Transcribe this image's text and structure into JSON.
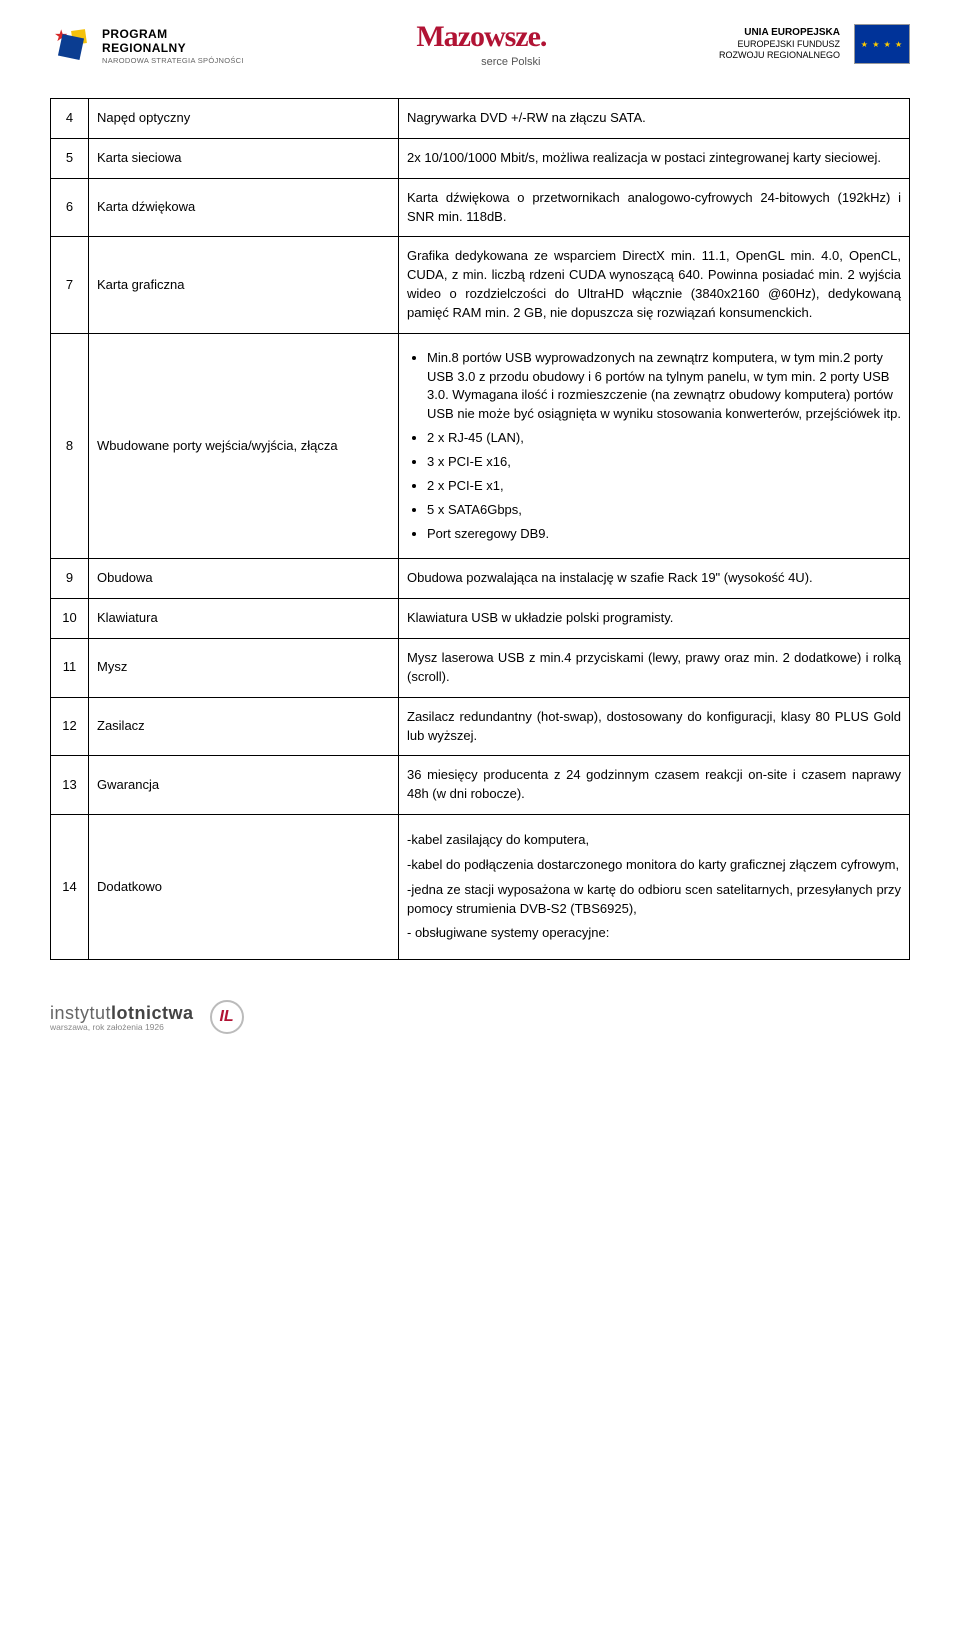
{
  "header": {
    "left": {
      "line1": "PROGRAM",
      "line2": "REGIONALNY",
      "line3": "NARODOWA STRATEGIA SPÓJNOŚCI"
    },
    "center": {
      "word": "Mazowsze.",
      "sub": "serce Polski"
    },
    "right": {
      "line1": "UNIA EUROPEJSKA",
      "line2": "EUROPEJSKI FUNDUSZ",
      "line3": "ROZWOJU REGIONALNEGO",
      "stars": "★ ★ ★ ★"
    }
  },
  "rows": [
    {
      "num": "4",
      "name": "Napęd optyczny",
      "desc": "Nagrywarka DVD +/-RW na złączu SATA.",
      "justify": false
    },
    {
      "num": "5",
      "name": "Karta sieciowa",
      "desc": "2x 10/100/1000 Mbit/s, możliwa realizacja w postaci zintegrowanej karty sieciowej.",
      "justify": false
    },
    {
      "num": "6",
      "name": "Karta dźwiękowa",
      "desc": "Karta dźwiękowa o przetwornikach analogowo-cyfrowych 24-bitowych (192kHz) i SNR min. 118dB.",
      "justify": false
    },
    {
      "num": "7",
      "name": "Karta graficzna",
      "desc": "Grafika dedykowana ze wsparciem DirectX min. 11.1, OpenGL min. 4.0, OpenCL, CUDA, z min. liczbą rdzeni CUDA wynoszącą 640. Powinna posiadać min. 2 wyjścia wideo o rozdzielczości do UltraHD włącznie (3840x2160 @60Hz), dedykowaną pamięć RAM min. 2 GB, nie dopuszcza się rozwiązań konsumenckich.",
      "justify": true
    }
  ],
  "row8": {
    "num": "8",
    "name": "Wbudowane porty wejścia/wyjścia, złącza",
    "bullets": [
      "Min.8 portów USB wyprowadzonych na zewnątrz komputera, w tym min.2 porty USB 3.0 z przodu obudowy i 6 portów na tylnym panelu, w tym min. 2 porty USB 3.0. Wymagana ilość i rozmieszczenie (na zewnątrz obudowy komputera) portów USB nie może być osiągnięta w wyniku stosowania konwerterów, przejściówek itp.",
      "2 x RJ-45 (LAN),",
      "3 x PCI-E x16,",
      "2 x PCI-E x1,",
      "5 x SATA6Gbps,",
      "Port szeregowy DB9."
    ]
  },
  "rowsB": [
    {
      "num": "9",
      "name": "Obudowa",
      "desc": "Obudowa pozwalająca na instalację w szafie Rack 19\" (wysokość 4U).",
      "justify": false
    },
    {
      "num": "10",
      "name": "Klawiatura",
      "desc": "Klawiatura USB w układzie polski programisty.",
      "justify": false
    },
    {
      "num": "11",
      "name": "Mysz",
      "desc": "Mysz laserowa USB z min.4 przyciskami (lewy, prawy oraz min. 2 dodatkowe) i rolką (scroll).",
      "justify": false
    },
    {
      "num": "12",
      "name": " Zasilacz",
      "desc": "Zasilacz redundantny (hot-swap), dostosowany do konfiguracji, klasy 80 PLUS Gold lub wyższej.",
      "justify": true
    },
    {
      "num": "13",
      "name": "Gwarancja",
      "desc": "36 miesięcy producenta z 24 godzinnym czasem reakcji on-site i czasem naprawy 48h (w dni robocze).",
      "justify": false
    }
  ],
  "row14": {
    "num": "14",
    "name": "Dodatkowo",
    "paras": [
      "-kabel zasilający do komputera,",
      "-kabel do podłączenia dostarczonego monitora do karty graficznej złączem cyfrowym,",
      "-jedna ze stacji wyposażona w kartę do odbioru scen satelitarnych, przesyłanych przy pomocy strumienia DVB-S2 (TBS6925),",
      "- obsługiwane systemy operacyjne:"
    ]
  },
  "footer": {
    "brand1a": "instytut",
    "brand1b": "lotnictwa",
    "brand2": "warszawa, rok założenia 1926",
    "mark": "IL"
  }
}
